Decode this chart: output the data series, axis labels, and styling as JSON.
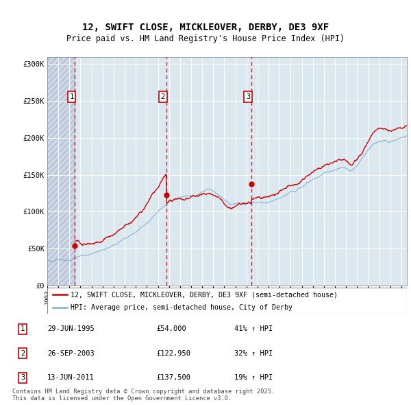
{
  "title": "12, SWIFT CLOSE, MICKLEOVER, DERBY, DE3 9XF",
  "subtitle": "Price paid vs. HM Land Registry's House Price Index (HPI)",
  "ylim": [
    0,
    310000
  ],
  "yticks": [
    0,
    50000,
    100000,
    150000,
    200000,
    250000,
    300000
  ],
  "ytick_labels": [
    "£0",
    "£50K",
    "£100K",
    "£150K",
    "£200K",
    "£250K",
    "£300K"
  ],
  "sale_dates_num": [
    1995.49,
    2003.75,
    2011.45
  ],
  "sale_prices": [
    54000,
    122950,
    137500
  ],
  "sale_labels": [
    "1",
    "2",
    "3"
  ],
  "sale_pct": [
    "41%",
    "32%",
    "19%"
  ],
  "sale_date_str": [
    "29-JUN-1995",
    "26-SEP-2003",
    "13-JUN-2011"
  ],
  "sale_price_str": [
    "£54,000",
    "£122,950",
    "£137,500"
  ],
  "red_line_color": "#cc0000",
  "blue_line_color": "#7bafd4",
  "legend_label_red": "12, SWIFT CLOSE, MICKLEOVER, DERBY, DE3 9XF (semi-detached house)",
  "legend_label_blue": "HPI: Average price, semi-detached house, City of Derby",
  "footer": "Contains HM Land Registry data © Crown copyright and database right 2025.\nThis data is licensed under the Open Government Licence v3.0.",
  "xmin": 1993.0,
  "xmax": 2025.5,
  "hpi_years": [
    1993.0,
    1993.5,
    1994.0,
    1994.5,
    1995.0,
    1995.5,
    1996.0,
    1996.5,
    1997.0,
    1997.5,
    1998.0,
    1998.5,
    1999.0,
    1999.5,
    2000.0,
    2000.5,
    2001.0,
    2001.5,
    2002.0,
    2002.5,
    2003.0,
    2003.5,
    2004.0,
    2004.5,
    2005.0,
    2005.5,
    2006.0,
    2006.5,
    2007.0,
    2007.5,
    2008.0,
    2008.5,
    2009.0,
    2009.5,
    2010.0,
    2010.5,
    2011.0,
    2011.5,
    2012.0,
    2012.5,
    2013.0,
    2013.5,
    2014.0,
    2014.5,
    2015.0,
    2015.5,
    2016.0,
    2016.5,
    2017.0,
    2017.5,
    2018.0,
    2018.5,
    2019.0,
    2019.5,
    2020.0,
    2020.5,
    2021.0,
    2021.5,
    2022.0,
    2022.5,
    2023.0,
    2023.5,
    2024.0,
    2024.5,
    2025.0,
    2025.5
  ],
  "hpi_vals": [
    33500,
    33800,
    34200,
    35000,
    35800,
    36800,
    38000,
    39500,
    42000,
    44500,
    47000,
    50000,
    53500,
    57000,
    61000,
    65500,
    70000,
    76000,
    83000,
    91000,
    99000,
    107000,
    114000,
    118000,
    120000,
    121000,
    123000,
    126000,
    130000,
    133000,
    131000,
    126000,
    120000,
    115000,
    117000,
    119000,
    119500,
    120000,
    120500,
    121000,
    122000,
    124000,
    127000,
    130000,
    133000,
    136000,
    140000,
    145000,
    150000,
    154000,
    158000,
    161000,
    163000,
    165000,
    163000,
    158000,
    165000,
    175000,
    185000,
    195000,
    198000,
    200000,
    198000,
    200000,
    202000,
    205000
  ]
}
